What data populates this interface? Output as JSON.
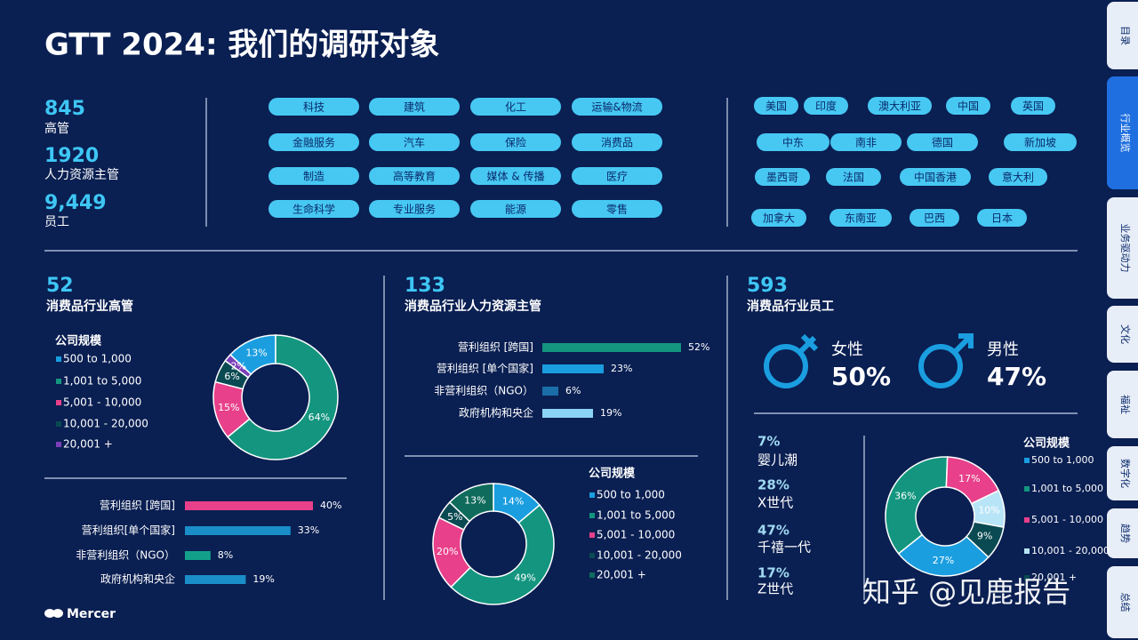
{
  "title": "GTT 2024: 我们的调研对象",
  "stats": [
    {
      "value": "845",
      "label": "高管"
    },
    {
      "value": "1920",
      "label": "人力资源主管"
    },
    {
      "value": "9,449",
      "label": "员工"
    }
  ],
  "industries": [
    "科技",
    "建筑",
    "化工",
    "运输&物流",
    "金融服务",
    "汽车",
    "保险",
    "消费品",
    "制造",
    "高等教育",
    "媒体 & 传播",
    "医疗",
    "生命科学",
    "专业服务",
    "能源",
    "零售"
  ],
  "countries": [
    "美国",
    "印度",
    "澳大利亚",
    "中国",
    "英国",
    "中东",
    "南非",
    "德国",
    "新加坡",
    "墨西哥",
    "法国",
    "中国香港",
    "意大利",
    "加拿大",
    "东南亚",
    "巴西",
    "日本"
  ],
  "tabs": [
    "目录",
    "行业概览",
    "业务驱动力",
    "文化",
    "福祉",
    "数字化",
    "趋势",
    "总结"
  ],
  "panels": [
    {
      "count": "52",
      "label": "消费品行业高管",
      "donut": {
        "type": "pie",
        "legend_title": "公司规模",
        "categories": [
          "500 to 1,000",
          "1,001 to 5,000",
          "5,001 - 10,000",
          "10,001 - 20,000",
          "20,001 +"
        ],
        "values": [
          13,
          64,
          15,
          6,
          2
        ],
        "value_labels": [
          "13%",
          "64%",
          "15%",
          "6%",
          "2%"
        ],
        "colors": [
          "#1a9ee0",
          "#13957f",
          "#e8408a",
          "#0a4a52",
          "#7b3fb8"
        ]
      },
      "bars": {
        "type": "bar",
        "categories": [
          "营利组织 [跨国]",
          "营利组织[单个国家]",
          "非营利组织（NGO）",
          "政府机构和央企"
        ],
        "values": [
          40,
          33,
          8,
          19
        ],
        "value_labels": [
          "40%",
          "33%",
          "8%",
          "19%"
        ],
        "colors": [
          "#e8408a",
          "#1a8ec8",
          "#13a08a",
          "#1a8ec8"
        ]
      }
    },
    {
      "count": "133",
      "label": "消费品行业人力资源主管",
      "bars": {
        "type": "bar",
        "categories": [
          "营利组织 [跨国]",
          "营利组织 [单个国家]",
          "非营利组织（NGO）",
          "政府机构和央企"
        ],
        "values": [
          52,
          23,
          6,
          19
        ],
        "value_labels": [
          "52%",
          "23%",
          "6%",
          "19%"
        ],
        "colors": [
          "#13957f",
          "#1a9ee0",
          "#1a6fa8",
          "#8ad4f5"
        ]
      },
      "donut": {
        "type": "pie",
        "legend_title": "公司规模",
        "categories": [
          "500 to 1,000",
          "1,001 to 5,000",
          "5,001 - 10,000",
          "10,001 - 20,000",
          "20,001 +"
        ],
        "values": [
          14,
          49,
          20,
          5,
          13
        ],
        "value_labels": [
          "14%",
          "49%",
          "20%",
          "5%",
          "13%"
        ],
        "colors": [
          "#1a9ee0",
          "#13957f",
          "#e8408a",
          "#0a4a52",
          "#0f6b5c"
        ]
      }
    },
    {
      "count": "593",
      "label": "消费品行业员工",
      "gender": [
        {
          "label": "女性",
          "value": "50%"
        },
        {
          "label": "男性",
          "value": "47%"
        }
      ],
      "generations": [
        {
          "value": "7%",
          "label": "婴儿潮"
        },
        {
          "value": "28%",
          "label": "X世代"
        },
        {
          "value": "47%",
          "label": "千禧一代"
        },
        {
          "value": "17%",
          "label": "Z世代"
        }
      ],
      "donut": {
        "type": "pie",
        "legend_title": "公司规模",
        "categories": [
          "500 to 1,000",
          "1,001 to 5,000",
          "5,001 - 10,000",
          "10,001 - 20,000",
          "20,001 +"
        ],
        "values": [
          27,
          36,
          17,
          10,
          9
        ],
        "value_labels": [
          "27%",
          "36%",
          "17%",
          "10%",
          "9%"
        ],
        "colors": [
          "#1a9ee0",
          "#13957f",
          "#e8408a",
          "#b8e4f7",
          "#0a4a52"
        ]
      }
    }
  ],
  "logo": "Mercer",
  "watermark": "知乎 @见鹿报告"
}
